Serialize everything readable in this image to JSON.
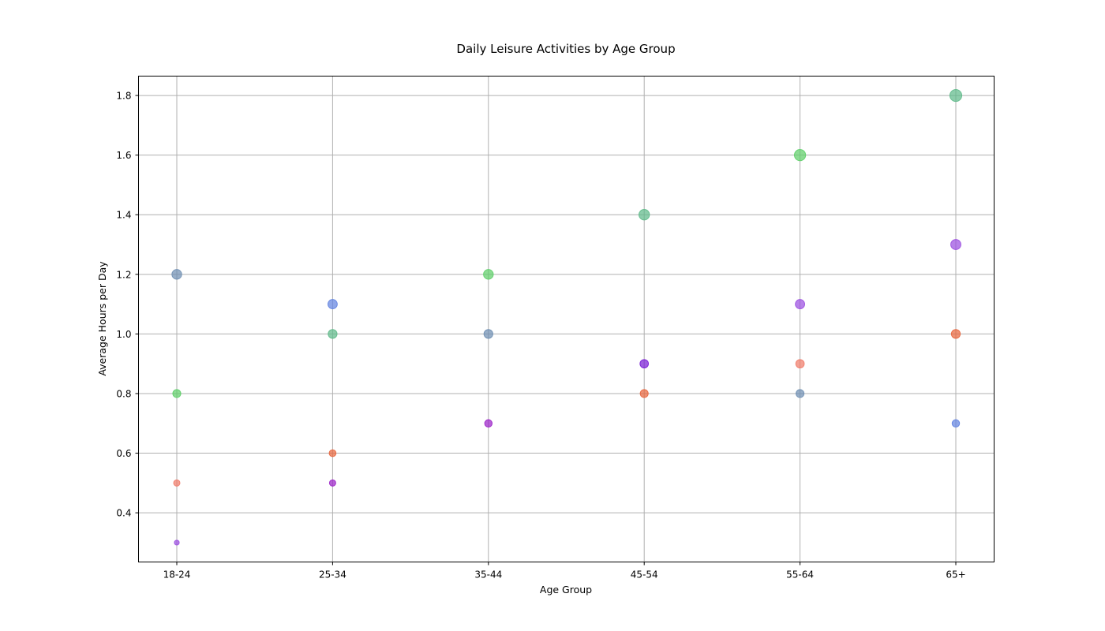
{
  "chart_data": {
    "type": "scatter",
    "title": "Daily Leisure Activities by Age Group",
    "xlabel": "Age Group",
    "ylabel": "Average Hours per Day",
    "categories": [
      "18-24",
      "25-34",
      "35-44",
      "45-54",
      "55-64",
      "65+"
    ],
    "ylim": [
      0.235,
      1.865
    ],
    "yticks": [
      "0.4",
      "0.6",
      "0.8",
      "1.0",
      "1.2",
      "1.4",
      "1.6",
      "1.8"
    ],
    "grid": true,
    "legend": "none",
    "series": [
      {
        "color": "#6f8fb3",
        "values": [
          1.2,
          null,
          1.0,
          null,
          0.8,
          null
        ]
      },
      {
        "color": "#6283e0",
        "values": [
          null,
          1.1,
          null,
          null,
          null,
          0.7
        ]
      },
      {
        "color": "#5fcf6a",
        "values": [
          0.8,
          null,
          1.2,
          null,
          1.6,
          null
        ]
      },
      {
        "color": "#5fba8a",
        "values": [
          null,
          1.0,
          null,
          1.4,
          null,
          1.8
        ]
      },
      {
        "color": "#f07b6a",
        "values": [
          0.5,
          null,
          null,
          null,
          0.9,
          null
        ]
      },
      {
        "color": "#e8673f",
        "values": [
          null,
          0.6,
          null,
          0.8,
          null,
          1.0
        ]
      },
      {
        "color": "#9b4fe0",
        "values": [
          0.3,
          null,
          null,
          null,
          1.1,
          1.3
        ]
      },
      {
        "color": "#9b22c8",
        "values": [
          null,
          0.5,
          0.7,
          null,
          null,
          null
        ]
      },
      {
        "color": "#7a1fd6",
        "values": [
          null,
          null,
          null,
          0.9,
          null,
          null
        ]
      }
    ]
  }
}
